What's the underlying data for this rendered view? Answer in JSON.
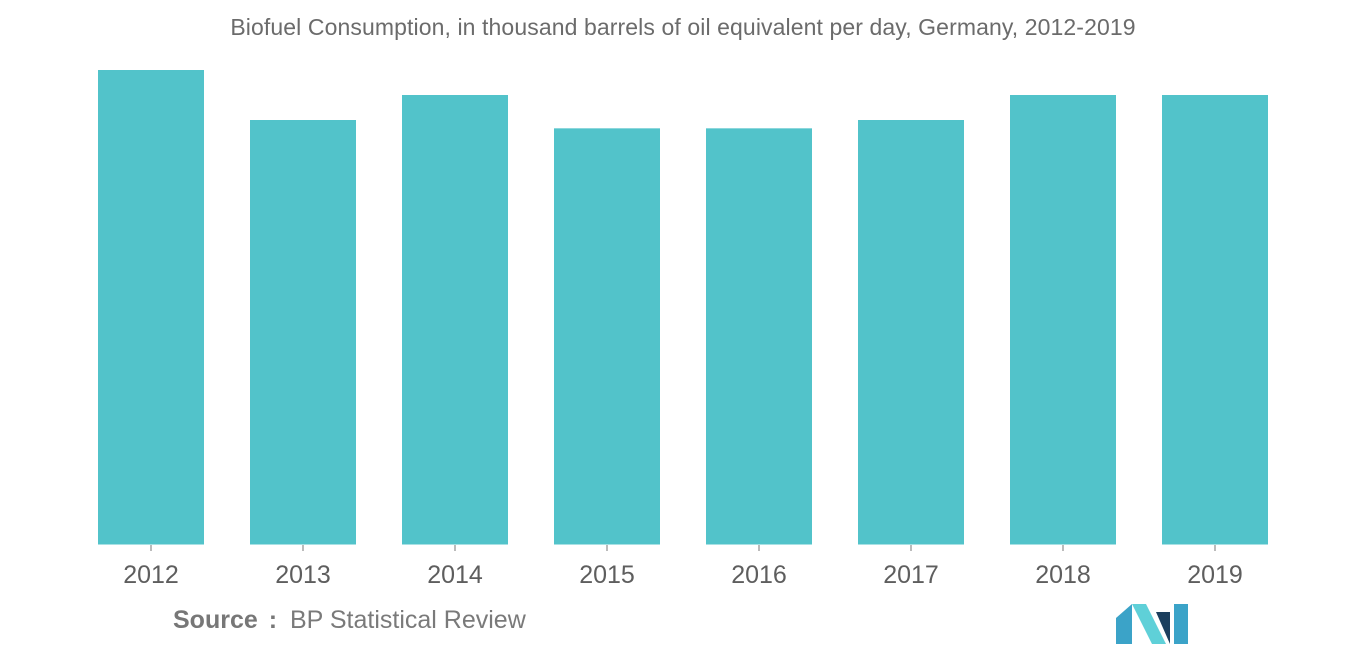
{
  "chart_data": {
    "type": "bar",
    "title": "Biofuel Consumption, in thousand barrels of oil equivalent per day, Germany, 2012-2019",
    "categories": [
      "2012",
      "2013",
      "2014",
      "2015",
      "2016",
      "2017",
      "2018",
      "2019"
    ],
    "values": [
      57,
      51,
      54,
      50,
      50,
      51,
      54,
      54
    ],
    "xlabel": "",
    "ylabel": "",
    "ylim": [
      0,
      60
    ],
    "grid": false,
    "legend": "none",
    "bar_color": "#52c3ca"
  },
  "source": {
    "key": "Source",
    "separator": ":",
    "value": "BP Statistical Review"
  },
  "logo": {
    "icon": "mordor-intelligence-logo",
    "colors": [
      "#1c3f5e",
      "#3ba3c8",
      "#5fd0d8"
    ]
  }
}
